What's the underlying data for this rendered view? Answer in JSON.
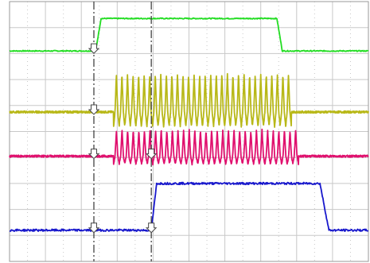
{
  "chart_data": {
    "type": "line",
    "title": "",
    "xlabel": "",
    "ylabel": "",
    "grid": true,
    "x_range": [
      0,
      10
    ],
    "y_range": [
      0,
      10
    ],
    "cursors_x": [
      2.35,
      3.95
    ],
    "trace_markers": [
      {
        "trace": 0,
        "x": 2.35
      },
      {
        "trace": 1,
        "x": 2.35
      },
      {
        "trace": 2,
        "x": 2.35
      },
      {
        "trace": 2,
        "x": 3.95
      },
      {
        "trace": 3,
        "x": 2.35
      },
      {
        "trace": 3,
        "x": 3.95
      }
    ],
    "series": [
      {
        "color": "#22dd22",
        "baseline": 8.1,
        "shape": "pulse",
        "low": 8.1,
        "high": 9.35,
        "rise_start": 2.4,
        "rise_end": 2.55,
        "fall_start": 7.45,
        "fall_end": 7.6,
        "noise": 0.02
      },
      {
        "color": "#b8b818",
        "baseline": 5.75,
        "shape": "burst",
        "start": 2.9,
        "end": 7.85,
        "cycles": 32,
        "amp_top": 1.45,
        "amp_bottom": 0.55,
        "noise": 0.04
      },
      {
        "color": "#e0106e",
        "baseline": 4.05,
        "shape": "burst",
        "start": 2.9,
        "end": 8.05,
        "cycles": 33,
        "amp_top": 1.0,
        "amp_bottom": 0.3,
        "noise": 0.04
      },
      {
        "color": "#1818cc",
        "baseline": 1.2,
        "shape": "pulse",
        "low": 1.2,
        "high": 3.0,
        "rise_start": 3.95,
        "rise_end": 4.1,
        "fall_start": 8.65,
        "fall_end": 8.9,
        "noise": 0.04
      }
    ]
  }
}
